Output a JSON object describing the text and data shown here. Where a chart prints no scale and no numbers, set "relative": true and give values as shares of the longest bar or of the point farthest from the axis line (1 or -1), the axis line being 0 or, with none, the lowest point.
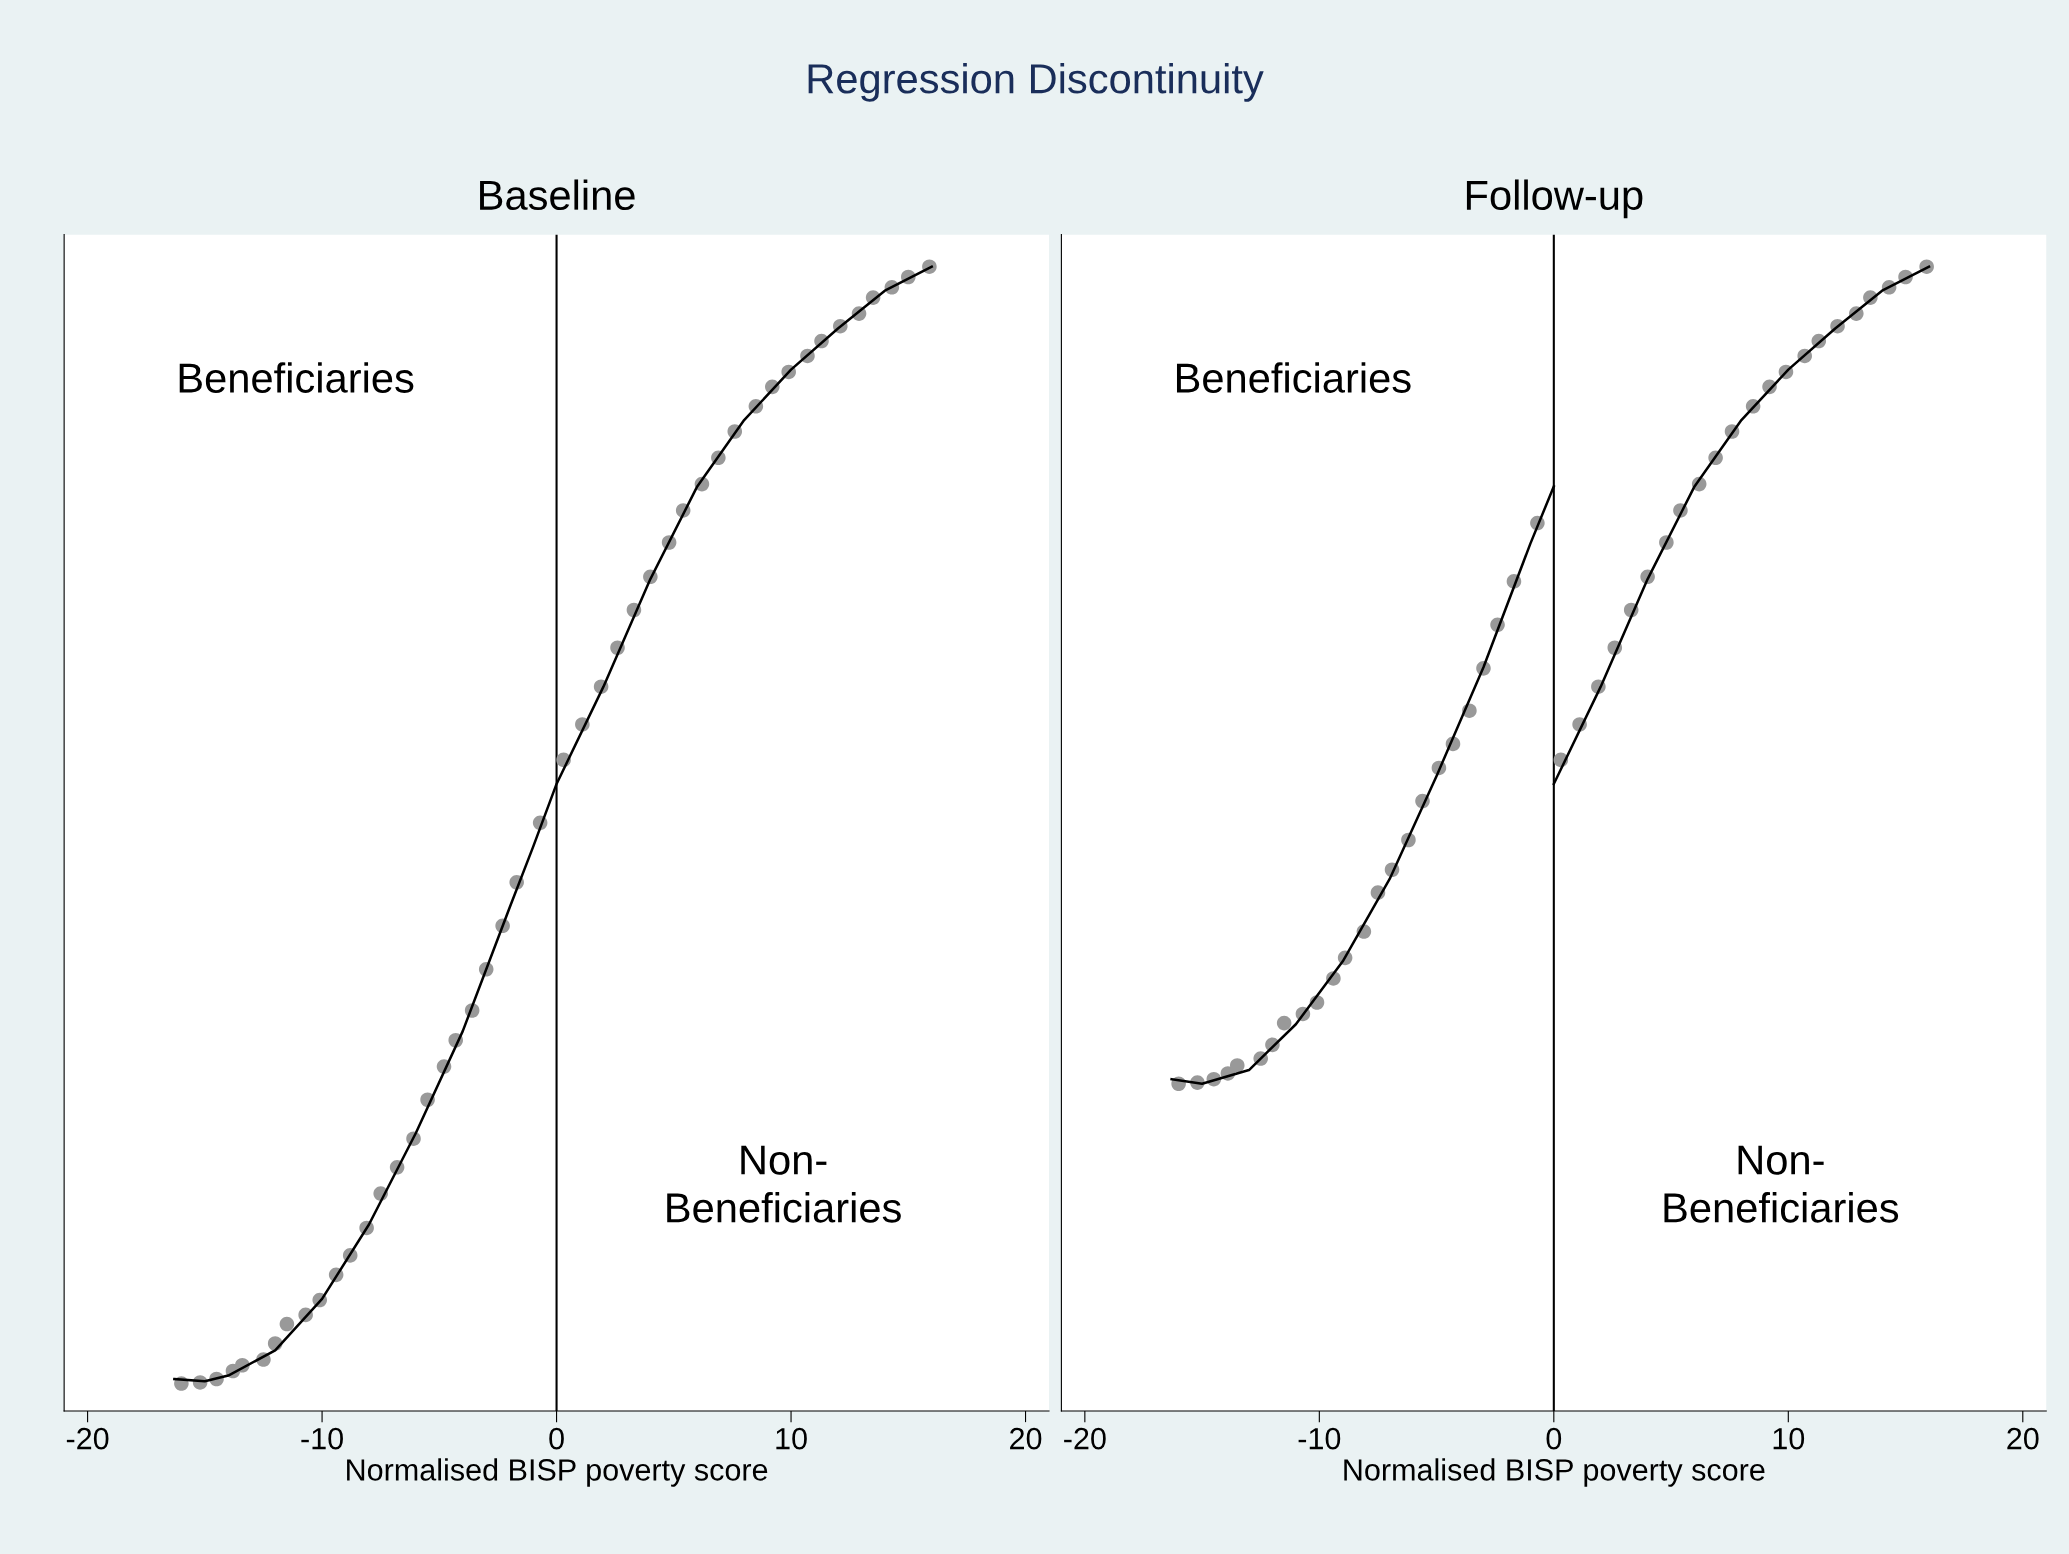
{
  "chart_data": [
    {
      "type": "scatter",
      "title": "Regression Discontinuity",
      "subtitle": "Baseline",
      "xlabel": "Normalised BISP poverty score",
      "relative": true,
      "tick_labels": "x",
      "grid": false,
      "legend": false,
      "marker": "circle",
      "xlim": [
        -21,
        21
      ],
      "xticks": [
        -20,
        -10,
        0,
        10,
        20
      ],
      "annotations": [
        "Beneficiaries",
        "Non-\nBeneficiaries"
      ],
      "ref_lines": [
        {
          "axis": "x",
          "value": 0,
          "color": "#000000",
          "line_style": "solid"
        }
      ],
      "series": [
        {
          "color": "#999999",
          "x": [
            -16.0,
            -15.2,
            -14.5,
            -13.8,
            -13.4,
            -12.5,
            -12.0,
            -11.5,
            -10.7,
            -10.1,
            -9.4,
            -8.8,
            -8.1,
            -7.5,
            -6.8,
            -6.1,
            -5.5,
            -4.8,
            -4.3,
            -3.6,
            -3.0,
            -2.3,
            -1.7,
            -0.7,
            0.3,
            1.1,
            1.9,
            2.6,
            3.3,
            4.0,
            4.8,
            5.4,
            6.2,
            6.9,
            7.6,
            8.5,
            9.2,
            9.9,
            10.7,
            11.3,
            12.1,
            12.9,
            13.5,
            14.3,
            15.0,
            15.9
          ],
          "values": [
            0.024,
            0.025,
            0.028,
            0.035,
            0.04,
            0.045,
            0.059,
            0.076,
            0.084,
            0.097,
            0.119,
            0.136,
            0.16,
            0.19,
            0.213,
            0.238,
            0.272,
            0.301,
            0.324,
            0.35,
            0.386,
            0.424,
            0.462,
            0.514,
            0.569,
            0.6,
            0.633,
            0.667,
            0.7,
            0.729,
            0.759,
            0.787,
            0.81,
            0.833,
            0.856,
            0.878,
            0.895,
            0.908,
            0.922,
            0.935,
            0.948,
            0.959,
            0.973,
            0.982,
            0.991,
            1.0
          ]
        },
        {
          "type": "line",
          "color": "#000000",
          "line_style": "solid",
          "marker": "none",
          "x": [
            -16.3,
            -15,
            -14,
            -12,
            -10,
            -8,
            -6,
            -4,
            -2,
            -1,
            0,
            2,
            4,
            6,
            8,
            10,
            12,
            14,
            16
          ],
          "values": [
            0.028,
            0.026,
            0.031,
            0.053,
            0.098,
            0.163,
            0.243,
            0.332,
            0.44,
            0.493,
            0.548,
            0.633,
            0.727,
            0.808,
            0.866,
            0.91,
            0.946,
            0.979,
            1.0
          ]
        }
      ]
    },
    {
      "type": "scatter",
      "subtitle": "Follow-up",
      "xlabel": "Normalised BISP poverty score",
      "relative": true,
      "tick_labels": "x",
      "grid": false,
      "legend": false,
      "marker": "circle",
      "xlim": [
        -21,
        21
      ],
      "xticks": [
        -20,
        -10,
        0,
        10,
        20
      ],
      "annotations": [
        "Beneficiaries",
        "Non-\nBeneficiaries"
      ],
      "ref_lines": [
        {
          "axis": "x",
          "value": 0,
          "color": "#000000",
          "line_style": "solid"
        }
      ],
      "series": [
        {
          "color": "#999999",
          "x": [
            -16.0,
            -15.2,
            -14.5,
            -13.9,
            -13.5,
            -12.5,
            -12.0,
            -11.5,
            -10.7,
            -10.1,
            -9.4,
            -8.9,
            -8.1,
            -7.5,
            -6.9,
            -6.2,
            -5.6,
            -4.9,
            -4.3,
            -3.6,
            -3.0,
            -2.4,
            -1.7,
            -0.7,
            0.3,
            1.1,
            1.9,
            2.6,
            3.3,
            4.0,
            4.8,
            5.4,
            6.2,
            6.9,
            7.6,
            8.5,
            9.2,
            9.9,
            10.7,
            11.3,
            12.1,
            12.9,
            13.5,
            14.3,
            15.0,
            15.9
          ],
          "values": [
            0.286,
            0.287,
            0.29,
            0.295,
            0.302,
            0.308,
            0.32,
            0.339,
            0.347,
            0.357,
            0.378,
            0.396,
            0.419,
            0.453,
            0.473,
            0.499,
            0.533,
            0.562,
            0.583,
            0.612,
            0.649,
            0.687,
            0.725,
            0.776,
            0.569,
            0.6,
            0.633,
            0.667,
            0.7,
            0.729,
            0.759,
            0.787,
            0.81,
            0.833,
            0.856,
            0.878,
            0.895,
            0.908,
            0.922,
            0.935,
            0.948,
            0.959,
            0.973,
            0.982,
            0.991,
            1.0
          ]
        },
        {
          "type": "line",
          "color": "#000000",
          "line_style": "solid",
          "marker": "none",
          "x": [
            -16.3,
            -15,
            -13,
            -11,
            -9,
            -7,
            -5,
            -3,
            -1,
            0
          ],
          "values": [
            0.29,
            0.286,
            0.298,
            0.338,
            0.393,
            0.465,
            0.555,
            0.65,
            0.758,
            0.808
          ]
        },
        {
          "type": "line",
          "color": "#000000",
          "line_style": "solid",
          "marker": "none",
          "x": [
            0,
            2,
            4,
            6,
            8,
            10,
            12,
            14,
            16
          ],
          "values": [
            0.548,
            0.633,
            0.727,
            0.808,
            0.866,
            0.91,
            0.946,
            0.979,
            1.0
          ]
        }
      ]
    }
  ]
}
